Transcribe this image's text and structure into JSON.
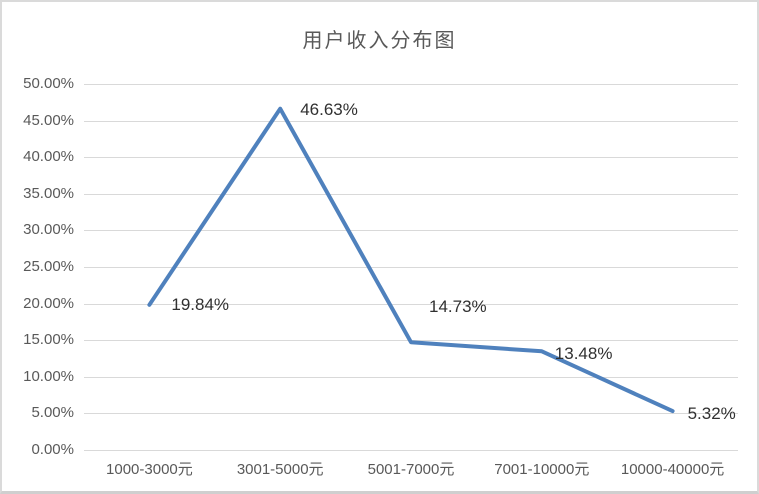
{
  "window": {
    "background": "#ffffff",
    "frame_border_color": "#dadada"
  },
  "chart_data": {
    "type": "line",
    "title": "用户收入分布图",
    "categories": [
      "1000-3000元",
      "3001-5000元",
      "5001-7000元",
      "7001-10000元",
      "10000-40000元"
    ],
    "values": [
      19.84,
      46.63,
      14.73,
      13.48,
      5.32
    ],
    "data_labels": [
      "19.84%",
      "46.63%",
      "14.73%",
      "13.48%",
      "5.32%"
    ],
    "y_ticks": [
      "50.00%",
      "45.00%",
      "40.00%",
      "35.00%",
      "30.00%",
      "25.00%",
      "20.00%",
      "15.00%",
      "10.00%",
      "5.00%",
      "0.00%"
    ],
    "ylim": [
      0,
      50
    ],
    "y_step": 5,
    "xlabel": "",
    "ylabel": "",
    "grid": "horizontal",
    "legend": "none",
    "markers": "none",
    "line_color": "#4f81bd",
    "grid_color": "#d9d9d9",
    "axis_text_color": "#595959",
    "data_label_color": "#303030",
    "title_color": "#595959"
  }
}
